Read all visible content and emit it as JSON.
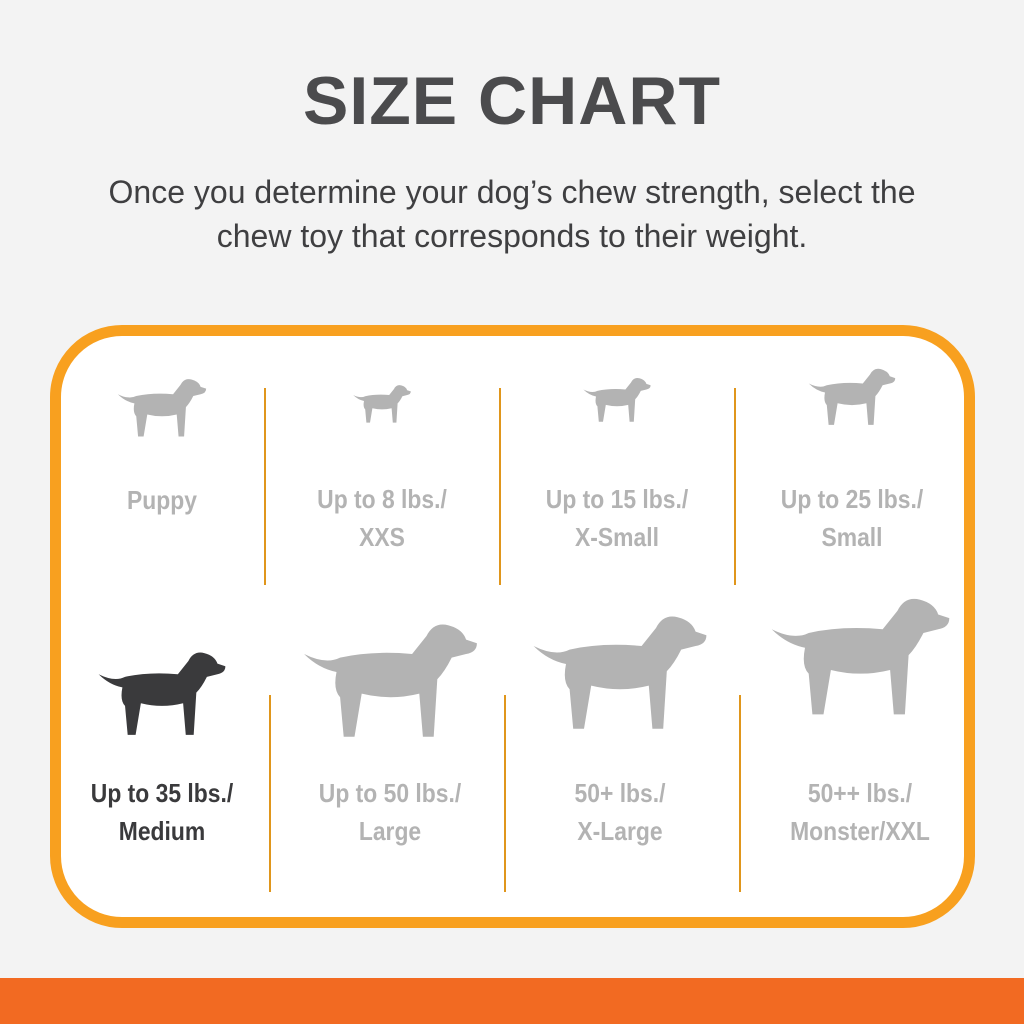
{
  "header": {
    "title": "SIZE CHART",
    "subtitle_line1": "Once you determine your dog’s chew strength, select the",
    "subtitle_line2": "chew toy that corresponds to their weight."
  },
  "colors": {
    "background": "#f3f3f3",
    "border": "#f8a01f",
    "bottom_bar": "#f26a22",
    "inactive": "#b3b3b3",
    "selected": "#3a3a3c"
  },
  "sizes": [
    {
      "icon": "puppy-icon",
      "line1": "Puppy",
      "line2": "",
      "selected": false
    },
    {
      "icon": "chihuahua-icon",
      "line1": "Up to 8 lbs./",
      "line2": "XXS",
      "selected": false
    },
    {
      "icon": "small-terrier-icon",
      "line1": "Up to 15 lbs./",
      "line2": "X-Small",
      "selected": false
    },
    {
      "icon": "scottie-icon",
      "line1": "Up to 25 lbs./",
      "line2": "Small",
      "selected": false
    },
    {
      "icon": "beagle-icon",
      "line1": "Up to 35 lbs./",
      "line2": "Medium",
      "selected": true
    },
    {
      "icon": "retriever-icon",
      "line1": "Up to 50 lbs./",
      "line2": "Large",
      "selected": false
    },
    {
      "icon": "shepherd-icon",
      "line1": "50+ lbs./",
      "line2": "X-Large",
      "selected": false
    },
    {
      "icon": "great-dane-icon",
      "line1": "50++ lbs./",
      "line2": "Monster/XXL",
      "selected": false
    }
  ]
}
